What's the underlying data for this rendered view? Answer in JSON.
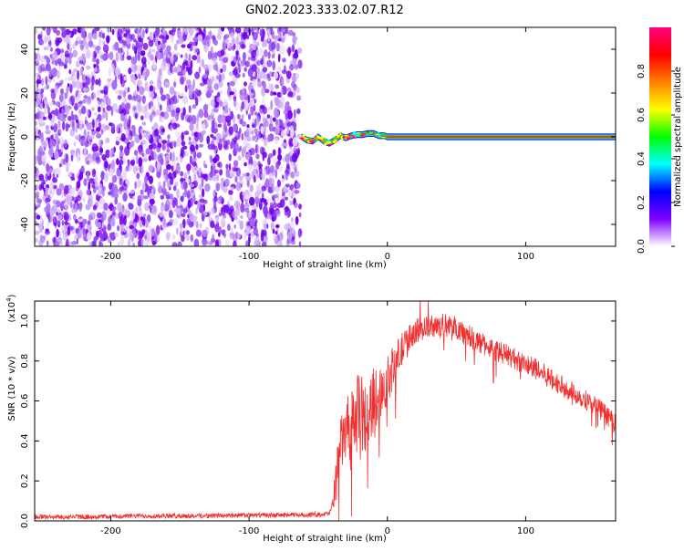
{
  "title": "GN02.2023.333.02.07.R12",
  "colorbar": {
    "label": "Normalized spectral amplitude",
    "ticks": [
      "0.0",
      "0.2",
      "0.4",
      "0.6",
      "0.8"
    ],
    "tick_values": [
      0.0,
      0.2,
      0.4,
      0.6,
      0.8
    ],
    "range": [
      0,
      1
    ],
    "colormap": "rainbow",
    "stops": [
      "#ffffff",
      "#7f00ff",
      "#0000ff",
      "#00ffff",
      "#00ff00",
      "#ffff00",
      "#ff8000",
      "#ff0000",
      "#ff0080"
    ]
  },
  "chart_data": [
    {
      "type": "heatmap",
      "name": "spectrogram",
      "xlabel": "Height of straight line (km)",
      "ylabel": "Frequency (Hz)",
      "xlim": [
        -255,
        165
      ],
      "ylim": [
        -50,
        50
      ],
      "xticks": [
        -200,
        -100,
        0,
        100
      ],
      "xtick_labels": [
        "-200",
        "-100",
        "0",
        "100"
      ],
      "yticks": [
        -40,
        -20,
        0,
        20,
        40
      ],
      "ytick_labels": [
        "-40",
        "-20",
        "0",
        "20",
        "40"
      ],
      "noise_region_x": [
        -255,
        -63
      ],
      "ridge_region_x": [
        -63,
        165
      ],
      "noise_color": "#7a00f0",
      "ridge_center_freq_hz": [
        [
          -62,
          0
        ],
        [
          -58,
          -1.5
        ],
        [
          -54,
          -2
        ],
        [
          -50,
          0
        ],
        [
          -46,
          -2
        ],
        [
          -42,
          -3
        ],
        [
          -38,
          -1.5
        ],
        [
          -34,
          0.5
        ],
        [
          -30,
          -0.5
        ],
        [
          -26,
          0.5
        ],
        [
          -22,
          1
        ],
        [
          -18,
          1
        ],
        [
          -14,
          1.5
        ],
        [
          -10,
          1.5
        ],
        [
          -6,
          0.5
        ],
        [
          -2,
          0.5
        ],
        [
          0,
          0
        ],
        [
          165,
          0
        ]
      ],
      "ridge_halfwidth_hz": 1.5
    },
    {
      "type": "line",
      "name": "snr",
      "xlabel": "Height of straight line (km)",
      "ylabel": "SNR (10 * v/v)",
      "y_multiplier": "(x10",
      "y_exponent": "4",
      "y_multiplier_close": ")",
      "xlim": [
        -255,
        165
      ],
      "ylim": [
        0,
        1.1
      ],
      "xticks": [
        -200,
        -100,
        0,
        100
      ],
      "xtick_labels": [
        "-200",
        "-100",
        "0",
        "100"
      ],
      "yticks": [
        0.0,
        0.2,
        0.4,
        0.6,
        0.8,
        1.0
      ],
      "ytick_labels": [
        "0.0",
        "0.2",
        "0.4",
        "0.6",
        "0.8",
        "1.0"
      ],
      "color": "#f03030",
      "series_envelope": {
        "x": [
          -255,
          -220,
          -180,
          -140,
          -100,
          -60,
          -42,
          -38,
          -35,
          -30,
          -25,
          -20,
          -15,
          -10,
          -5,
          0,
          5,
          10,
          15,
          20,
          30,
          40,
          50,
          60,
          70,
          80,
          90,
          100,
          110,
          120,
          130,
          140,
          150,
          160,
          165
        ],
        "y": [
          0.02,
          0.02,
          0.025,
          0.025,
          0.028,
          0.03,
          0.035,
          0.12,
          0.35,
          0.45,
          0.5,
          0.55,
          0.5,
          0.6,
          0.65,
          0.7,
          0.78,
          0.85,
          0.9,
          0.95,
          0.97,
          0.98,
          0.97,
          0.92,
          0.88,
          0.85,
          0.82,
          0.78,
          0.75,
          0.7,
          0.66,
          0.62,
          0.58,
          0.52,
          0.48
        ]
      },
      "noise_amplitude": {
        "x": [
          -255,
          -40,
          -38,
          -20,
          0,
          20,
          165
        ],
        "y": [
          0.012,
          0.012,
          0.12,
          0.2,
          0.12,
          0.06,
          0.05
        ]
      }
    }
  ]
}
